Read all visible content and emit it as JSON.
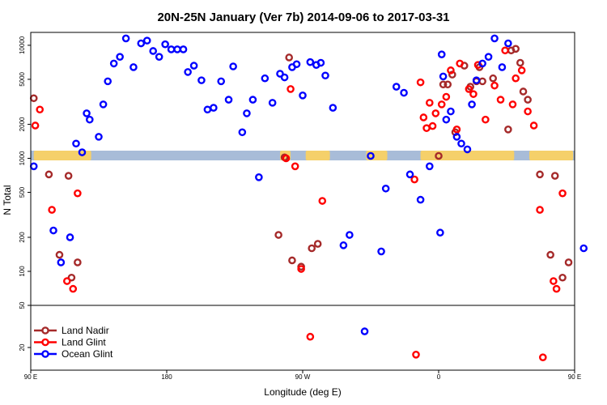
{
  "chart_data": {
    "type": "scatter",
    "title": "20N-25N January (Ver 7b)   2014-09-06 to 2017-03-31",
    "xlabel": "Longitude (deg E)",
    "ylabel": "N Total",
    "x_scale": "longitude-extended",
    "y_scale": "log",
    "x_range": [
      90,
      450
    ],
    "y_main_range": [
      50,
      13000
    ],
    "x_ticks": [
      {
        "value": 90,
        "label": "90 E"
      },
      {
        "value": 180,
        "label": "180"
      },
      {
        "value": 270,
        "label": "90 W"
      },
      {
        "value": 360,
        "label": "0"
      },
      {
        "value": 450,
        "label": "90 E"
      },
      {
        "value": 540,
        "label": "180"
      }
    ],
    "y_ticks": [
      {
        "value": 10000,
        "label": "10000"
      },
      {
        "value": 5000,
        "label": "5000"
      },
      {
        "value": 2000,
        "label": "2000"
      },
      {
        "value": 1000,
        "label": "1000"
      },
      {
        "value": 500,
        "label": "500"
      },
      {
        "value": 200,
        "label": "200"
      },
      {
        "value": 100,
        "label": "100"
      },
      {
        "value": 50,
        "label": "50"
      },
      {
        "value": 20,
        "label": "20"
      }
    ],
    "legend_position": "bottom-left",
    "map_band": true,
    "series": [
      {
        "name": "Land Nadir",
        "color": "#a52a2a",
        "points": [
          [
            92,
            3400
          ],
          [
            102,
            720
          ],
          [
            109,
            140
          ],
          [
            115,
            700
          ],
          [
            117,
            88
          ],
          [
            121,
            120
          ],
          [
            254,
            210
          ],
          [
            258,
            1020
          ],
          [
            261,
            7800
          ],
          [
            263,
            125
          ],
          [
            269,
            110
          ],
          [
            276,
            160
          ],
          [
            280,
            175
          ],
          [
            360,
            1050
          ],
          [
            363,
            4500
          ],
          [
            366,
            4500
          ],
          [
            369,
            5500
          ],
          [
            371,
            1700
          ],
          [
            377,
            6600
          ],
          [
            381,
            4300
          ],
          [
            385,
            4800
          ],
          [
            387,
            6400
          ],
          [
            389,
            4800
          ],
          [
            396,
            5100
          ],
          [
            406,
            1800
          ],
          [
            408,
            9000
          ],
          [
            411,
            9300
          ],
          [
            414,
            7000
          ],
          [
            416,
            3900
          ],
          [
            419,
            3300
          ],
          [
            427,
            720
          ],
          [
            434,
            140
          ],
          [
            437,
            700
          ],
          [
            442,
            88
          ],
          [
            446,
            120
          ]
        ]
      },
      {
        "name": "Land Glint",
        "color": "#ff0000",
        "points": [
          [
            93,
            1950
          ],
          [
            96,
            2700
          ],
          [
            104,
            350
          ],
          [
            114,
            82
          ],
          [
            118,
            70
          ],
          [
            121,
            490
          ],
          [
            259,
            1000
          ],
          [
            262,
            4100
          ],
          [
            265,
            850
          ],
          [
            269,
            105
          ],
          [
            275,
            27
          ],
          [
            283,
            420
          ],
          [
            344,
            650
          ],
          [
            348,
            4700
          ],
          [
            350,
            2300
          ],
          [
            352,
            1850
          ],
          [
            354,
            3100
          ],
          [
            356,
            1930
          ],
          [
            358,
            2500
          ],
          [
            362,
            3000
          ],
          [
            365,
            3500
          ],
          [
            368,
            6000
          ],
          [
            372,
            1800
          ],
          [
            374,
            6900
          ],
          [
            380,
            4100
          ],
          [
            383,
            3700
          ],
          [
            386,
            6700
          ],
          [
            391,
            2200
          ],
          [
            397,
            4400
          ],
          [
            401,
            3300
          ],
          [
            404,
            9000
          ],
          [
            409,
            3000
          ],
          [
            411,
            5100
          ],
          [
            415,
            6000
          ],
          [
            419,
            2600
          ],
          [
            423,
            1950
          ],
          [
            427,
            350
          ],
          [
            429,
            18
          ],
          [
            436,
            82
          ],
          [
            438,
            70
          ],
          [
            442,
            490
          ],
          [
            345,
            19
          ]
        ]
      },
      {
        "name": "Ocean Glint",
        "color": "#0000ff",
        "points": [
          [
            92,
            850
          ],
          [
            105,
            230
          ],
          [
            110,
            120
          ],
          [
            116,
            200
          ],
          [
            120,
            1350
          ],
          [
            124,
            1130
          ],
          [
            127,
            2500
          ],
          [
            129,
            2200
          ],
          [
            135,
            1550
          ],
          [
            138,
            3000
          ],
          [
            141,
            4800
          ],
          [
            145,
            6900
          ],
          [
            149,
            7900
          ],
          [
            153,
            11500
          ],
          [
            158,
            6400
          ],
          [
            163,
            10400
          ],
          [
            167,
            11000
          ],
          [
            171,
            8900
          ],
          [
            175,
            7900
          ],
          [
            179,
            10200
          ],
          [
            183,
            9200
          ],
          [
            187,
            9200
          ],
          [
            191,
            9200
          ],
          [
            194,
            5800
          ],
          [
            198,
            6600
          ],
          [
            203,
            4900
          ],
          [
            207,
            2700
          ],
          [
            211,
            2800
          ],
          [
            216,
            4800
          ],
          [
            221,
            3300
          ],
          [
            224,
            6500
          ],
          [
            230,
            1700
          ],
          [
            233,
            2500
          ],
          [
            237,
            3300
          ],
          [
            241,
            680
          ],
          [
            245,
            5100
          ],
          [
            250,
            3100
          ],
          [
            255,
            5600
          ],
          [
            258,
            5200
          ],
          [
            263,
            6400
          ],
          [
            266,
            6800
          ],
          [
            270,
            3600
          ],
          [
            275,
            7100
          ],
          [
            279,
            6700
          ],
          [
            282,
            7000
          ],
          [
            285,
            5400
          ],
          [
            290,
            2800
          ],
          [
            297,
            170
          ],
          [
            301,
            210
          ],
          [
            311,
            30
          ],
          [
            315,
            1050
          ],
          [
            322,
            150
          ],
          [
            325,
            540
          ],
          [
            332,
            4300
          ],
          [
            337,
            3800
          ],
          [
            341,
            720
          ],
          [
            348,
            430
          ],
          [
            354,
            850
          ],
          [
            361,
            220
          ],
          [
            362,
            8300
          ],
          [
            363,
            5300
          ],
          [
            365,
            2200
          ],
          [
            368,
            2600
          ],
          [
            372,
            1550
          ],
          [
            375,
            1350
          ],
          [
            379,
            1200
          ],
          [
            382,
            3000
          ],
          [
            385,
            4900
          ],
          [
            389,
            6900
          ],
          [
            393,
            7900
          ],
          [
            397,
            11500
          ],
          [
            402,
            6400
          ],
          [
            406,
            10400
          ],
          [
            456,
            160
          ]
        ]
      }
    ]
  }
}
